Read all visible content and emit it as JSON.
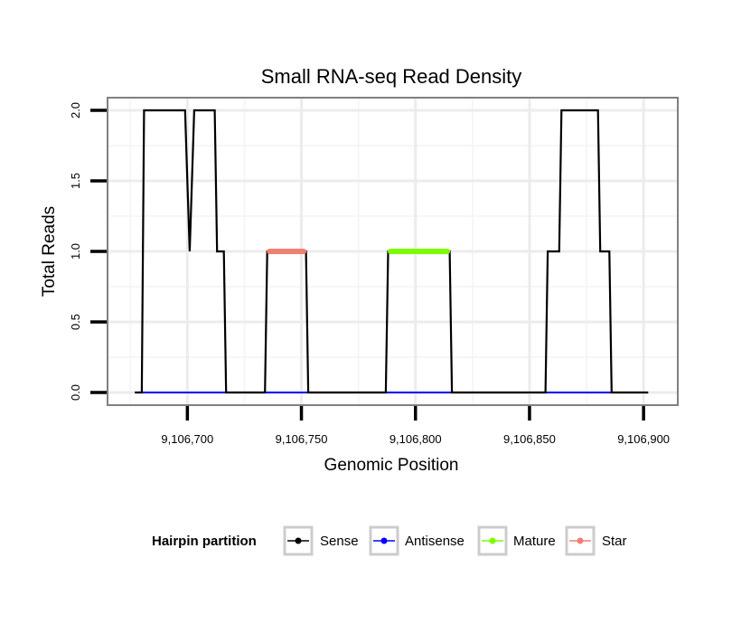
{
  "chart_data": {
    "type": "line",
    "title": "Small RNA-seq Read Density",
    "xlabel": "Genomic Position",
    "ylabel": "Total Reads",
    "xlim": [
      9106665,
      9106915
    ],
    "ylim": [
      -0.09,
      2.09
    ],
    "x_ticks": [
      9106700,
      9106750,
      9106800,
      9106850,
      9106900
    ],
    "x_tick_labels": [
      "9,106,700",
      "9,106,750",
      "9,106,800",
      "9,106,850",
      "9,106,900"
    ],
    "y_ticks": [
      0.0,
      0.5,
      1.0,
      1.5,
      2.0
    ],
    "y_tick_labels": [
      "0.0",
      "0.5",
      "1.0",
      "1.5",
      "2.0"
    ],
    "grid": true,
    "legend": {
      "title": "Hairpin partition",
      "position": "bottom",
      "entries": [
        "Sense",
        "Antisense",
        "Mature",
        "Star"
      ]
    },
    "series": [
      {
        "name": "Sense",
        "color": "#000000",
        "x": [
          9106677,
          9106680,
          9106681,
          9106699,
          9106700,
          9106701,
          9106702,
          9106703,
          9106704,
          9106712,
          9106713,
          9106716,
          9106717,
          9106734,
          9106735,
          9106752,
          9106753,
          9106787,
          9106788,
          9106815,
          9106816,
          9106857,
          9106858,
          9106863,
          9106864,
          9106880,
          9106881,
          9106885,
          9106886,
          9106902
        ],
        "values": [
          0,
          0,
          2,
          2,
          1.5,
          1,
          1.5,
          2,
          2,
          2,
          1,
          1,
          0,
          0,
          1,
          1,
          0,
          0,
          1,
          1,
          0,
          0,
          1,
          1,
          2,
          2,
          1,
          1,
          0,
          0
        ]
      },
      {
        "name": "Antisense",
        "color": "#0000ff",
        "x": [
          9106677,
          9106902
        ],
        "values": [
          0,
          0
        ]
      },
      {
        "name": "Mature",
        "color": "#7cfc00",
        "x": [
          9106789,
          9106814
        ],
        "values": [
          1,
          1
        ]
      },
      {
        "name": "Star",
        "color": "#f08070",
        "x": [
          9106736,
          9106751
        ],
        "values": [
          1,
          1
        ]
      }
    ]
  }
}
